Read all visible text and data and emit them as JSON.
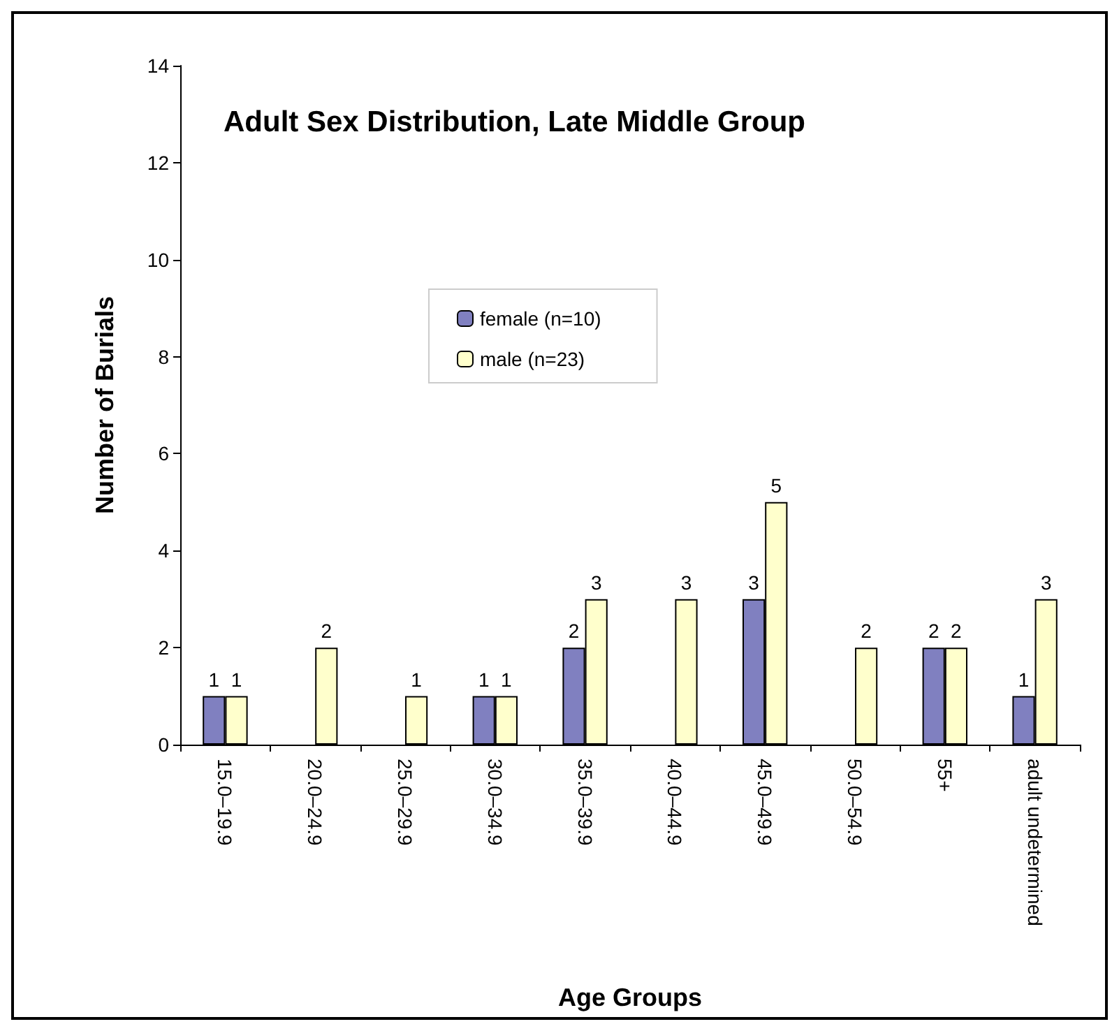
{
  "chart_data": {
    "type": "bar",
    "title": "Adult Sex Distribution, Late Middle Group",
    "xlabel": "Age Groups",
    "ylabel": "Number of Burials",
    "categories": [
      "15.0–19.9",
      "20.0–24.9",
      "25.0–29.9",
      "30.0–34.9",
      "35.0–39.9",
      "40.0–44.9",
      "45.0–49.9",
      "50.0–54.9",
      "55+",
      "adult undetermined"
    ],
    "series": [
      {
        "name": "female (n=10)",
        "color": "#8080c0",
        "values": [
          1,
          null,
          null,
          1,
          2,
          null,
          3,
          null,
          2,
          1
        ]
      },
      {
        "name": "male (n=23)",
        "color": "#ffffcc",
        "values": [
          1,
          2,
          1,
          1,
          3,
          3,
          5,
          2,
          2,
          3
        ]
      }
    ],
    "ylim": [
      0,
      14
    ],
    "yticks": [
      0,
      2,
      4,
      6,
      8,
      10,
      12,
      14
    ],
    "grid": false,
    "legend": "top left",
    "data_labels": true
  }
}
